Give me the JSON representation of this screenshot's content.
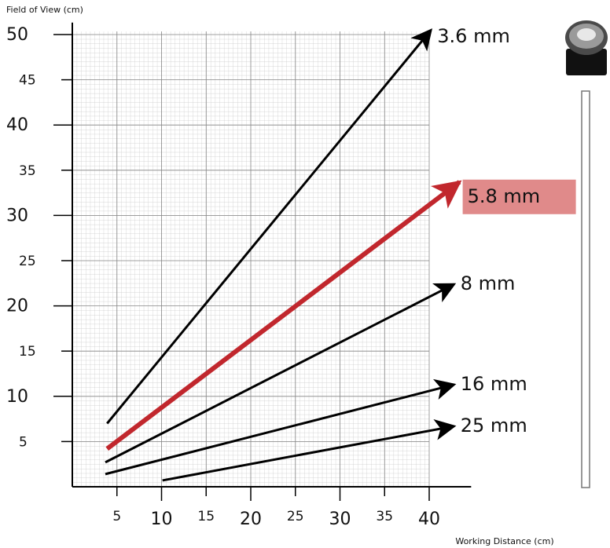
{
  "chart_data": {
    "type": "line",
    "y_label": "Field of View (cm)",
    "x_label": "Working Distance (cm)",
    "xlim": [
      0,
      44.7
    ],
    "ylim": [
      0,
      50.8
    ],
    "xticks": [
      5,
      10,
      15,
      20,
      25,
      30,
      35,
      40
    ],
    "yticks": [
      5,
      10,
      15,
      20,
      25,
      30,
      35,
      40,
      45,
      50
    ],
    "grid": true,
    "series": [
      {
        "name": "3.6 mm",
        "color": "#000000",
        "x": [
          3.9,
          40.2
        ],
        "values": [
          7.0,
          50.5
        ]
      },
      {
        "name": "5.8 mm",
        "color": "#c1272d",
        "x": [
          3.9,
          43.4
        ],
        "values": [
          4.2,
          33.7
        ]
      },
      {
        "name": "8 mm",
        "color": "#000000",
        "x": [
          3.7,
          42.8
        ],
        "values": [
          2.7,
          22.4
        ]
      },
      {
        "name": "16 mm",
        "color": "#000000",
        "x": [
          3.7,
          42.8
        ],
        "values": [
          1.4,
          11.3
        ]
      },
      {
        "name": "25 mm",
        "color": "#000000",
        "x": [
          10.1,
          42.8
        ],
        "values": [
          0.7,
          6.7
        ]
      }
    ]
  }
}
